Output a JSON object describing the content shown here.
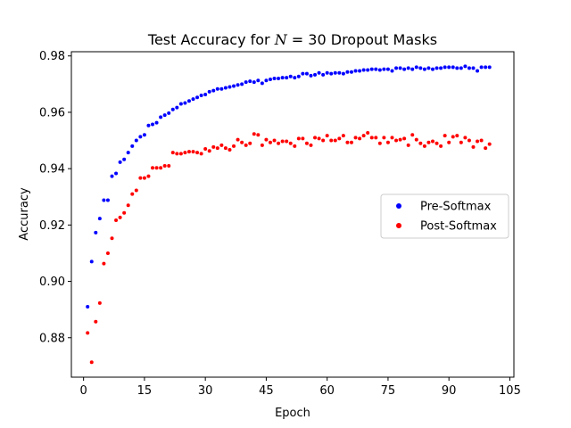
{
  "chart_data": {
    "type": "scatter",
    "title_prefix": "Test Accuracy for ",
    "title_math_var": "N",
    "title_math_rest": " = 30",
    "title_suffix": " Dropout Masks",
    "xlabel": "Epoch",
    "ylabel": "Accuracy",
    "xlim": [
      -3,
      106
    ],
    "ylim": [
      0.866,
      0.9815
    ],
    "xticks": [
      0,
      15,
      30,
      45,
      60,
      75,
      90,
      105
    ],
    "xtick_labels": [
      "0",
      "15",
      "30",
      "45",
      "60",
      "75",
      "90",
      "105"
    ],
    "yticks": [
      0.88,
      0.9,
      0.92,
      0.94,
      0.96,
      0.98
    ],
    "ytick_labels": [
      "0.88",
      "0.90",
      "0.92",
      "0.94",
      "0.96",
      "0.98"
    ],
    "grid": false,
    "legend_position": "center-right",
    "x": [
      1,
      2,
      3,
      4,
      5,
      6,
      7,
      8,
      9,
      10,
      11,
      12,
      13,
      14,
      15,
      16,
      17,
      18,
      19,
      20,
      21,
      22,
      23,
      24,
      25,
      26,
      27,
      28,
      29,
      30,
      31,
      32,
      33,
      34,
      35,
      36,
      37,
      38,
      39,
      40,
      41,
      42,
      43,
      44,
      45,
      46,
      47,
      48,
      49,
      50,
      51,
      52,
      53,
      54,
      55,
      56,
      57,
      58,
      59,
      60,
      61,
      62,
      63,
      64,
      65,
      66,
      67,
      68,
      69,
      70,
      71,
      72,
      73,
      74,
      75,
      76,
      77,
      78,
      79,
      80,
      81,
      82,
      83,
      84,
      85,
      86,
      87,
      88,
      89,
      90,
      91,
      92,
      93,
      94,
      95,
      96,
      97,
      98,
      99,
      100
    ],
    "series": [
      {
        "name": "Pre-Softmax",
        "color": "#0000ff",
        "values": [
          0.891,
          0.907,
          0.9173,
          0.9223,
          0.9288,
          0.9288,
          0.9373,
          0.9383,
          0.9423,
          0.9433,
          0.9457,
          0.948,
          0.95,
          0.9513,
          0.952,
          0.9553,
          0.9557,
          0.9563,
          0.9583,
          0.959,
          0.9597,
          0.961,
          0.9617,
          0.963,
          0.9633,
          0.964,
          0.9647,
          0.9653,
          0.966,
          0.9663,
          0.9673,
          0.9677,
          0.9683,
          0.9683,
          0.9687,
          0.969,
          0.9693,
          0.9697,
          0.97,
          0.9707,
          0.971,
          0.9707,
          0.9713,
          0.9703,
          0.9713,
          0.9717,
          0.972,
          0.972,
          0.9723,
          0.9723,
          0.9727,
          0.9723,
          0.9727,
          0.9737,
          0.9737,
          0.973,
          0.9733,
          0.974,
          0.9733,
          0.974,
          0.9737,
          0.974,
          0.974,
          0.9737,
          0.9743,
          0.9743,
          0.9747,
          0.9747,
          0.975,
          0.975,
          0.9753,
          0.9753,
          0.975,
          0.9753,
          0.9753,
          0.9747,
          0.9757,
          0.9757,
          0.9753,
          0.9757,
          0.9753,
          0.976,
          0.9757,
          0.9753,
          0.9757,
          0.9753,
          0.9757,
          0.9757,
          0.976,
          0.976,
          0.976,
          0.9757,
          0.9757,
          0.9763,
          0.9757,
          0.9757,
          0.9747,
          0.976,
          0.976,
          0.976
        ]
      },
      {
        "name": "Post-Softmax",
        "color": "#ff0000",
        "values": [
          0.8817,
          0.8713,
          0.8857,
          0.8923,
          0.9063,
          0.91,
          0.9153,
          0.9217,
          0.9227,
          0.9243,
          0.927,
          0.931,
          0.9323,
          0.9367,
          0.9367,
          0.9373,
          0.9403,
          0.9403,
          0.9403,
          0.941,
          0.941,
          0.9457,
          0.9453,
          0.9453,
          0.9457,
          0.946,
          0.946,
          0.9457,
          0.9453,
          0.947,
          0.9463,
          0.9477,
          0.9473,
          0.9483,
          0.9473,
          0.9467,
          0.948,
          0.9503,
          0.9493,
          0.9483,
          0.949,
          0.9523,
          0.952,
          0.9483,
          0.9503,
          0.9493,
          0.95,
          0.949,
          0.9497,
          0.9497,
          0.949,
          0.948,
          0.9507,
          0.9507,
          0.949,
          0.9483,
          0.951,
          0.9507,
          0.95,
          0.9517,
          0.95,
          0.95,
          0.9507,
          0.9517,
          0.9493,
          0.9493,
          0.951,
          0.9507,
          0.9517,
          0.9527,
          0.951,
          0.951,
          0.949,
          0.951,
          0.9493,
          0.951,
          0.95,
          0.9503,
          0.9507,
          0.9483,
          0.952,
          0.9503,
          0.949,
          0.948,
          0.9493,
          0.9497,
          0.949,
          0.948,
          0.9517,
          0.9493,
          0.9513,
          0.9517,
          0.9493,
          0.951,
          0.95,
          0.9477,
          0.9497,
          0.95,
          0.9473,
          0.9487
        ]
      }
    ]
  }
}
